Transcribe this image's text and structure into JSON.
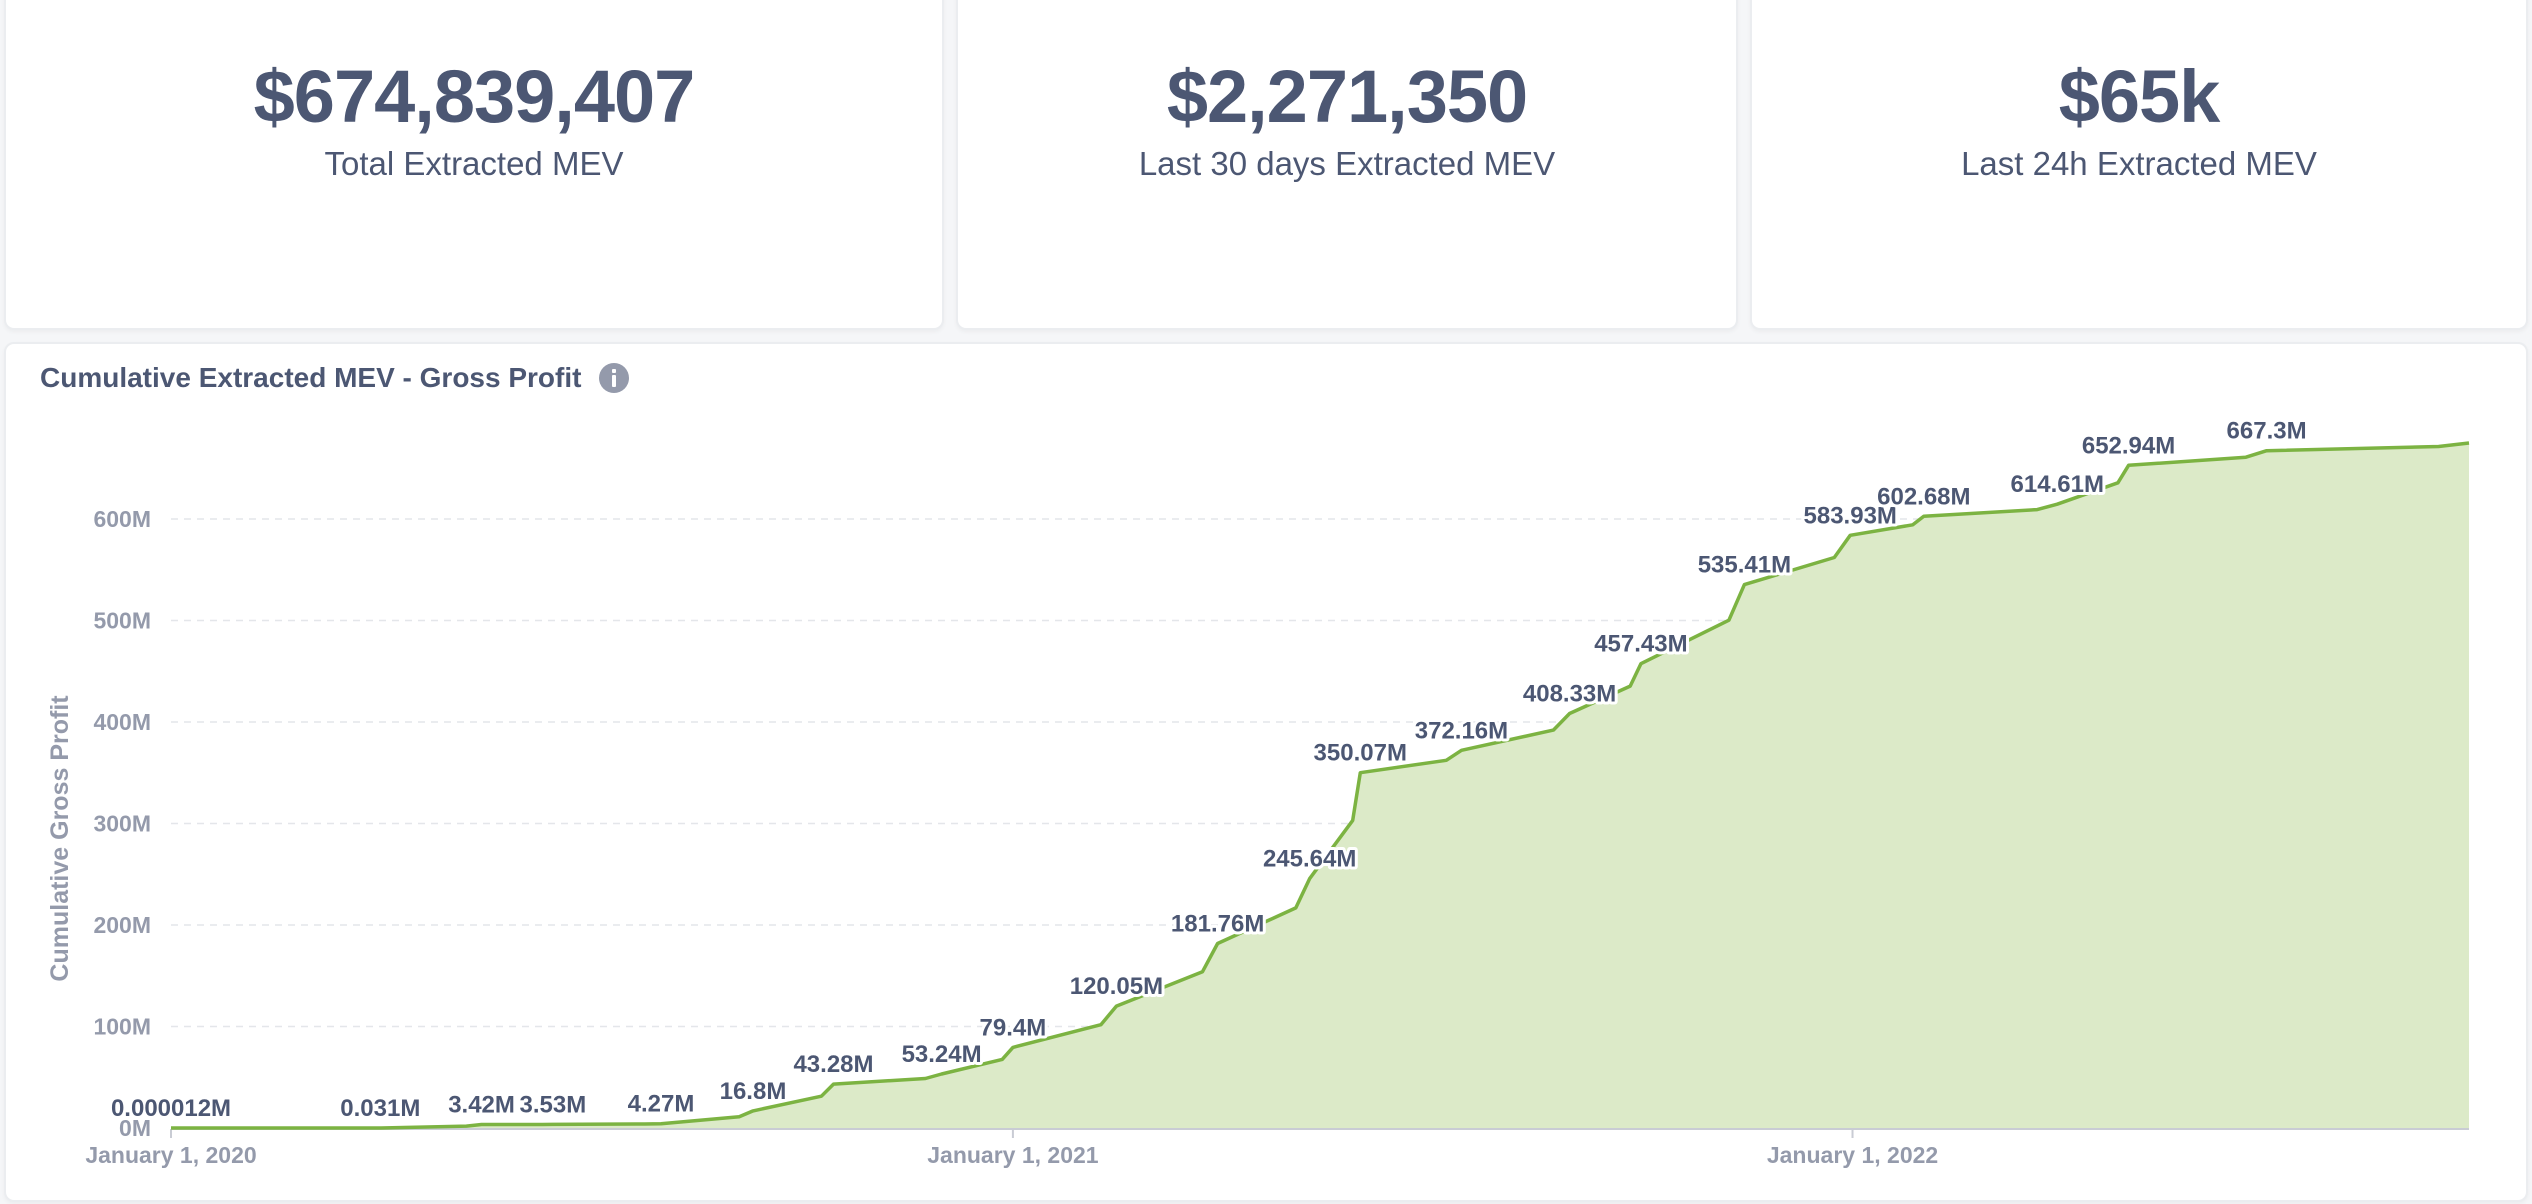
{
  "stats": {
    "total": {
      "value": "$674,839,407",
      "label": "Total Extracted MEV"
    },
    "last30": {
      "value": "$2,271,350",
      "label": "Last 30 days Extracted MEV"
    },
    "last24": {
      "value": "$65k",
      "label": "Last 24h Extracted MEV"
    }
  },
  "chart_card": {
    "title": "Cumulative Extracted MEV - Gross Profit",
    "info_icon": "info-icon"
  },
  "colors": {
    "text": "#4c5773",
    "muted": "#949aab",
    "line": "#7cb342",
    "area": "#dceac8"
  },
  "chart_data": {
    "type": "area",
    "title": "Cumulative Extracted MEV - Gross Profit",
    "xlabel": "",
    "ylabel": "Cumulative Gross Profit",
    "x_ticks": [
      "January 1, 2020",
      "January 1, 2021",
      "January 1, 2022"
    ],
    "y_ticks": [
      "0M",
      "100M",
      "200M",
      "300M",
      "400M",
      "500M",
      "600M"
    ],
    "ylim": [
      0,
      700
    ],
    "xlim": [
      "2020-01-01",
      "2022-09-26"
    ],
    "grid": true,
    "series": [
      {
        "values_unit": "M",
        "points": [
          {
            "date": "2020-01-01",
            "value": 1.2e-05,
            "label": "0.000012M"
          },
          {
            "date": "2020-04-01",
            "value": 0.031,
            "label": "0.031M"
          },
          {
            "date": "2020-05-15",
            "value": 3.42,
            "label": "3.42M"
          },
          {
            "date": "2020-06-15",
            "value": 3.53,
            "label": "3.53M"
          },
          {
            "date": "2020-08-01",
            "value": 4.27,
            "label": "4.27M"
          },
          {
            "date": "2020-09-10",
            "value": 16.8,
            "label": "16.8M"
          },
          {
            "date": "2020-10-15",
            "value": 43.28,
            "label": "43.28M"
          },
          {
            "date": "2020-12-01",
            "value": 53.24,
            "label": "53.24M"
          },
          {
            "date": "2021-01-01",
            "value": 79.4,
            "label": "79.4M"
          },
          {
            "date": "2021-02-15",
            "value": 120.05,
            "label": "120.05M"
          },
          {
            "date": "2021-03-31",
            "value": 181.76,
            "label": "181.76M"
          },
          {
            "date": "2021-05-10",
            "value": 245.64,
            "label": "245.64M"
          },
          {
            "date": "2021-06-01",
            "value": 350.07,
            "label": "350.07M"
          },
          {
            "date": "2021-07-15",
            "value": 372.16,
            "label": "372.16M"
          },
          {
            "date": "2021-08-31",
            "value": 408.33,
            "label": "408.33M"
          },
          {
            "date": "2021-10-01",
            "value": 457.43,
            "label": "457.43M"
          },
          {
            "date": "2021-11-15",
            "value": 535.41,
            "label": "535.41M"
          },
          {
            "date": "2021-12-31",
            "value": 583.93,
            "label": "583.93M"
          },
          {
            "date": "2022-02-01",
            "value": 602.68,
            "label": "602.68M"
          },
          {
            "date": "2022-03-31",
            "value": 614.61,
            "label": "614.61M"
          },
          {
            "date": "2022-05-01",
            "value": 652.94,
            "label": "652.94M"
          },
          {
            "date": "2022-06-30",
            "value": 667.3,
            "label": "667.3M"
          },
          {
            "date": "2022-09-26",
            "value": 674.84,
            "label": ""
          }
        ]
      }
    ]
  }
}
